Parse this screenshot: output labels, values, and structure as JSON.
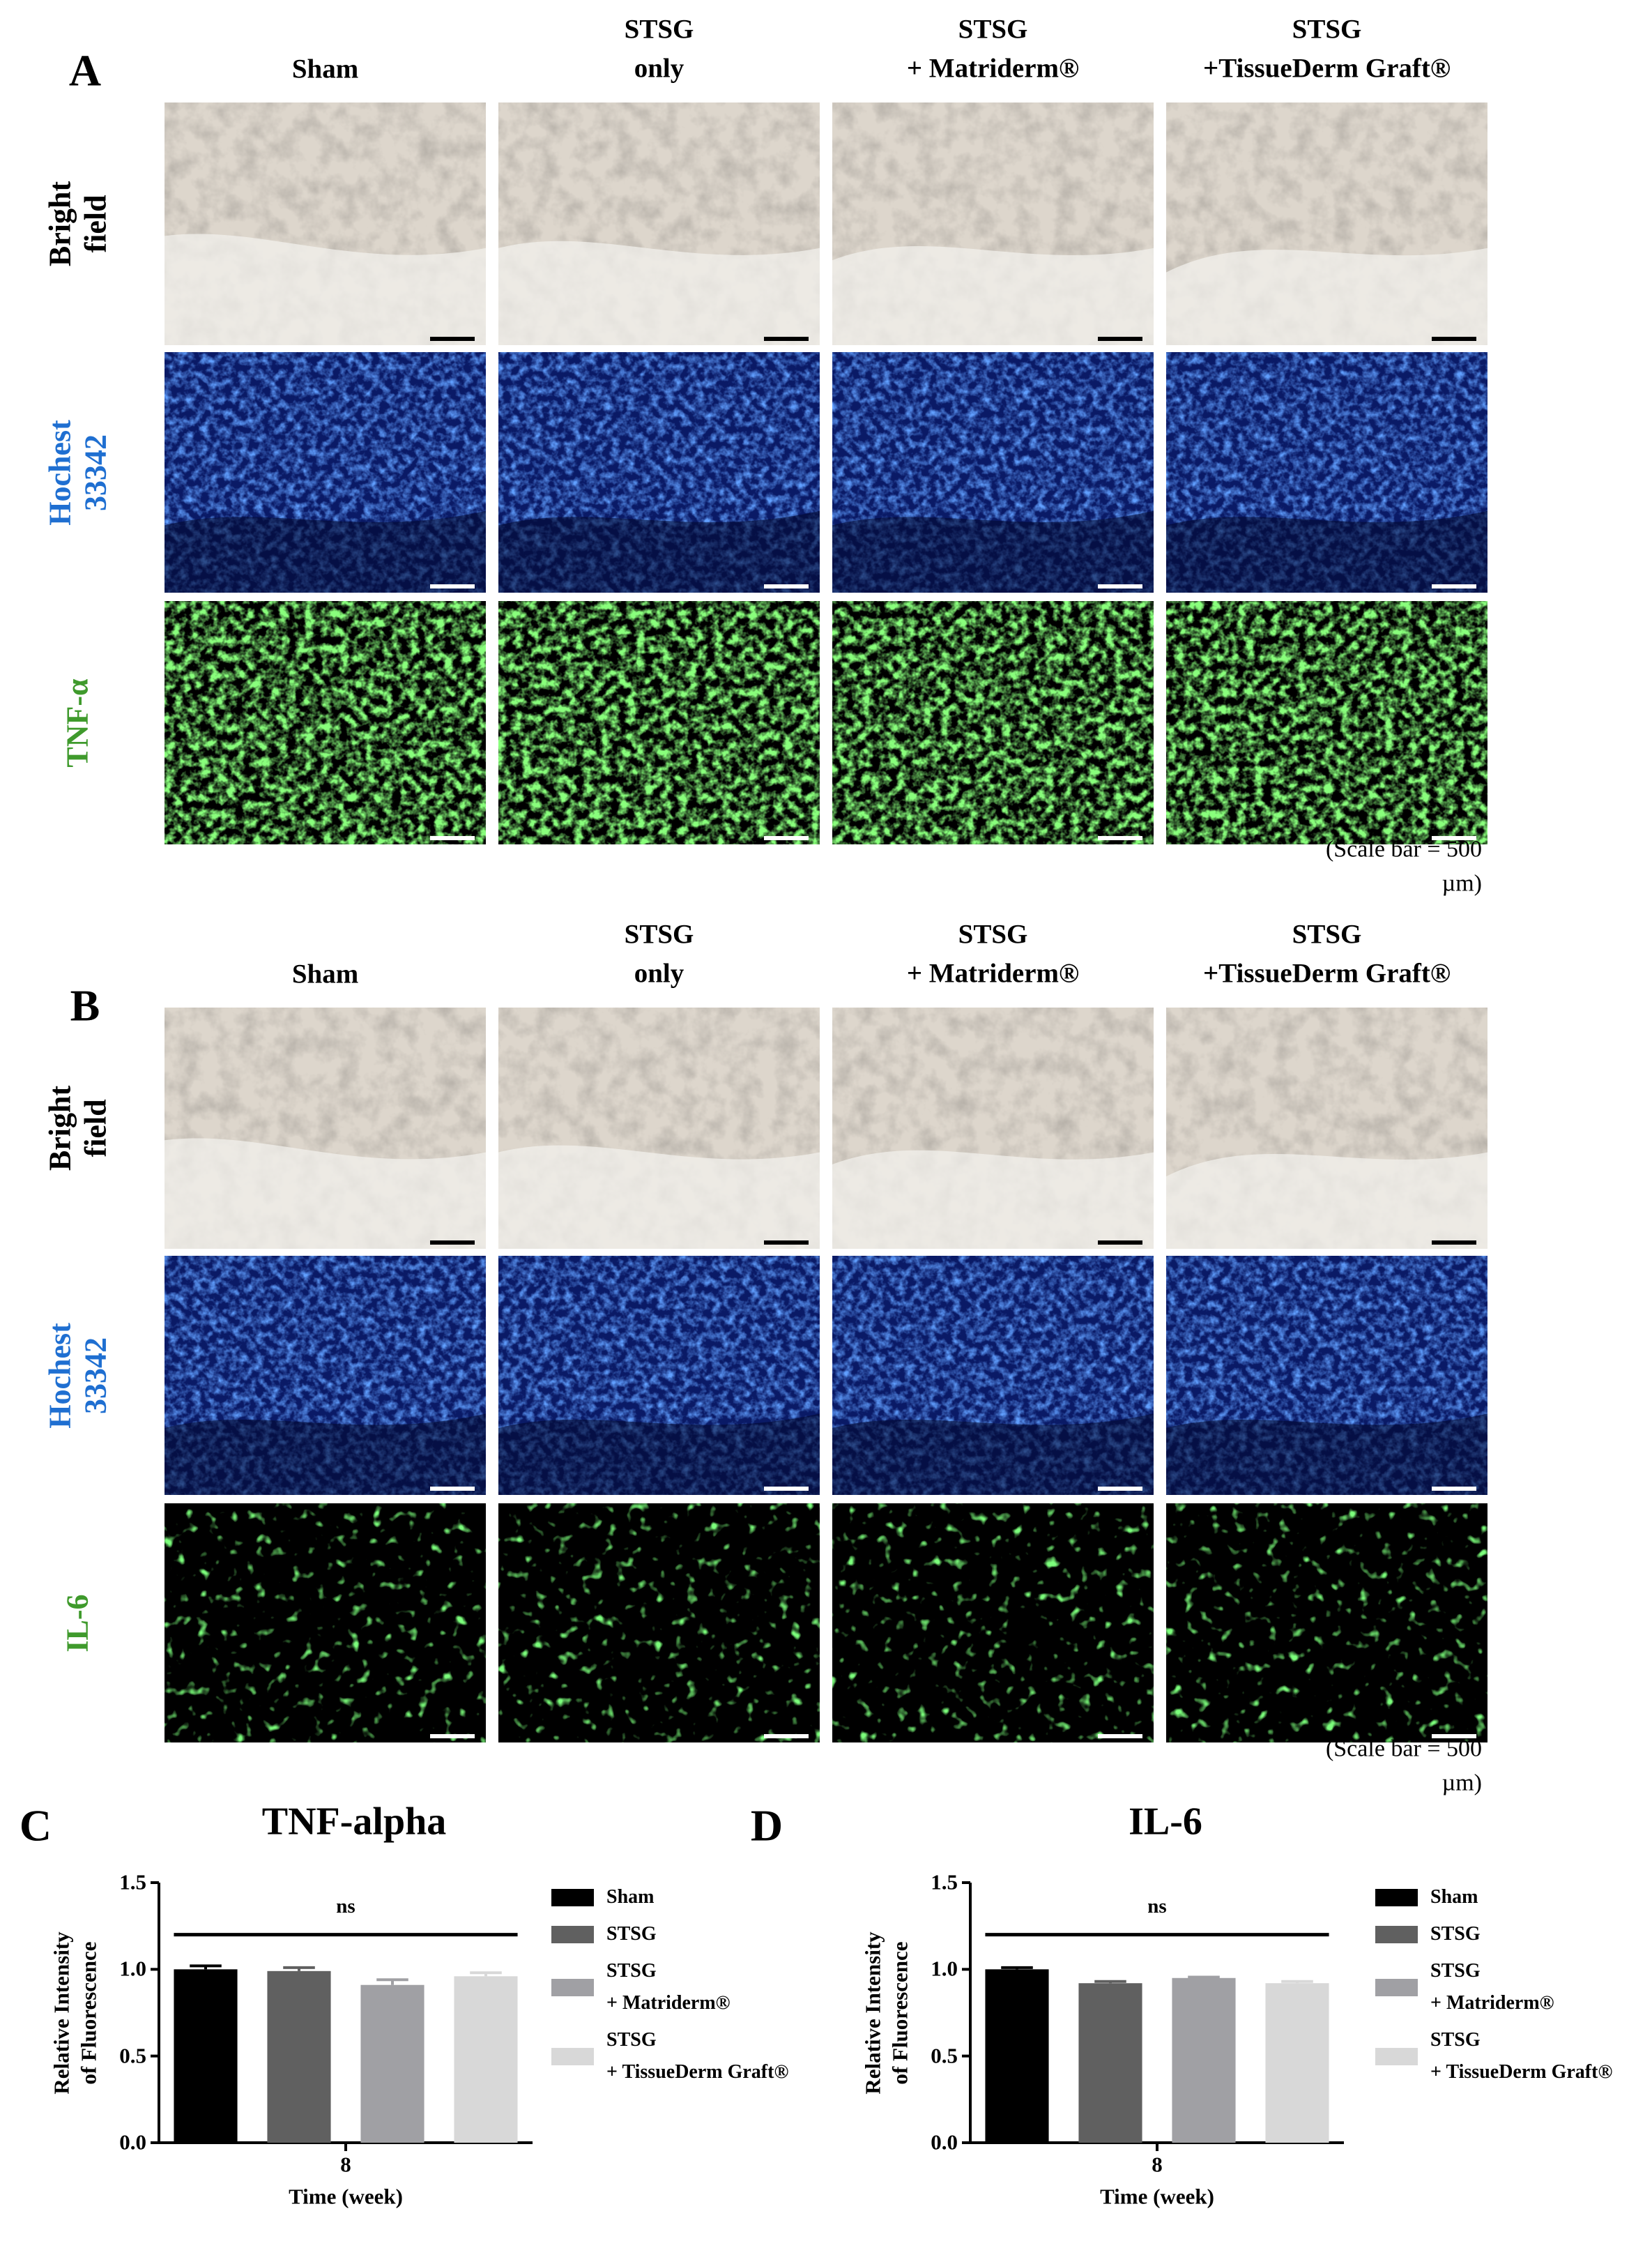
{
  "panel_A": {
    "label": "A",
    "columns": [
      "Sham",
      "STSG\nonly",
      "STSG\n+ Matriderm®",
      "STSG\n+TissueDerm Graft®"
    ],
    "rows": [
      "Bright\nfield",
      "Hochest\n33342",
      "TNF-α"
    ],
    "scale_note": "(Scale bar = 500 µm)"
  },
  "panel_B": {
    "label": "B",
    "columns": [
      "Sham",
      "STSG\nonly",
      "STSG\n+ Matriderm®",
      "STSG\n+TissueDerm Graft®"
    ],
    "rows": [
      "Bright\nfield",
      "Hochest\n33342",
      "IL-6"
    ],
    "scale_note": "(Scale bar = 500 µm)"
  },
  "chart_data": [
    {
      "type": "bar",
      "panel": "C",
      "title": "TNF-alpha",
      "ylabel": "Relative Intensity\nof Fluorescence",
      "xlabel": "Time (week)",
      "categories": [
        "8"
      ],
      "series": [
        {
          "name": "Sham",
          "color": "#000000",
          "values": [
            1.0
          ],
          "error": [
            0.02
          ]
        },
        {
          "name": "STSG",
          "color": "#606060",
          "values": [
            0.99
          ],
          "error": [
            0.02
          ]
        },
        {
          "name": "STSG\n+ Matriderm®",
          "color": "#a0a0a4",
          "values": [
            0.91
          ],
          "error": [
            0.03
          ]
        },
        {
          "name": "STSG\n+ TissueDerm Graft®",
          "color": "#d8d8d8",
          "values": [
            0.96
          ],
          "error": [
            0.02
          ]
        }
      ],
      "ylim": [
        0,
        1.5
      ],
      "yticks": [
        {
          "value": 0,
          "label": "0.0"
        },
        0.5,
        {
          "value": 1,
          "label": "1.0"
        },
        1.5
      ],
      "annotation": "ns"
    },
    {
      "type": "bar",
      "panel": "D",
      "title": "IL-6",
      "ylabel": "Relative Intensity\nof Fluorescence",
      "xlabel": "Time (week)",
      "categories": [
        "8"
      ],
      "series": [
        {
          "name": "Sham",
          "color": "#000000",
          "values": [
            1.0
          ],
          "error": [
            0.01
          ]
        },
        {
          "name": "STSG",
          "color": "#606060",
          "values": [
            0.92
          ],
          "error": [
            0.01
          ]
        },
        {
          "name": "STSG\n+ Matriderm®",
          "color": "#a0a0a4",
          "values": [
            0.95
          ],
          "error": [
            0.005
          ]
        },
        {
          "name": "STSG\n+ TissueDerm Graft®",
          "color": "#d8d8d8",
          "values": [
            0.92
          ],
          "error": [
            0.01
          ]
        }
      ],
      "ylim": [
        0,
        1.5
      ],
      "yticks": [
        {
          "value": 0,
          "label": "0.0"
        },
        0.5,
        {
          "value": 1,
          "label": "1.0"
        },
        1.5
      ],
      "annotation": "ns"
    }
  ]
}
